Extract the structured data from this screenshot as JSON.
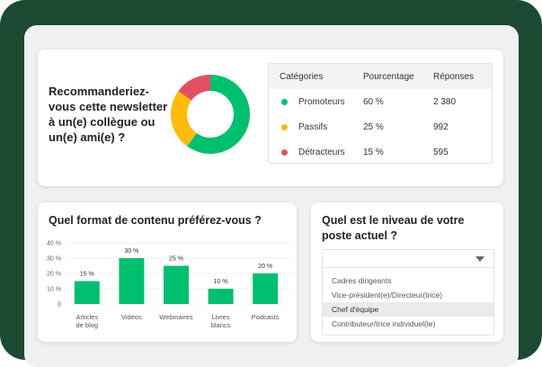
{
  "nps": {
    "question": "Recommanderiez-vous cette newsletter à un(e) collègue ou un(e) ami(e) ?",
    "headers": [
      "Catégories",
      "Pourcentage",
      "Réponses"
    ],
    "rows": [
      {
        "label": "Promoteurs",
        "percent_label": "60 %",
        "percent": 60,
        "responses": "2 380",
        "color": "#00bf6f"
      },
      {
        "label": "Passifs",
        "percent_label": "25 %",
        "percent": 25,
        "responses": "992",
        "color": "#fdbc0c"
      },
      {
        "label": "Détracteurs",
        "percent_label": "15 %",
        "percent": 15,
        "responses": "595",
        "color": "#e05263"
      }
    ]
  },
  "format": {
    "question": "Quel format de contenu préférez-vous ?"
  },
  "level": {
    "question": "Quel est le niveau de votre poste actuel ?",
    "selected": "",
    "options": [
      "Cadres dirigeants",
      "Vice-président(e)/Directeur(trice)",
      "Chef d'équipe",
      "Contributeur/trice individuel(le)"
    ],
    "highlighted": "Chef d'équipe"
  },
  "chart_data": {
    "type": "bar",
    "categories": [
      [
        "Articles",
        "de blog"
      ],
      [
        "Vidéos"
      ],
      [
        "Webinaires"
      ],
      [
        "Livres",
        "blancs"
      ],
      [
        "Podcasts"
      ]
    ],
    "values": [
      15,
      30,
      25,
      10,
      20
    ],
    "data_labels": [
      "15 %",
      "30 %",
      "25 %",
      "10 %",
      "20 %"
    ],
    "yticks": [
      "0",
      "10 %",
      "20 %",
      "30 %",
      "40 %"
    ],
    "ylim": [
      0,
      40
    ],
    "grid": true,
    "color": "#00bf6f"
  }
}
